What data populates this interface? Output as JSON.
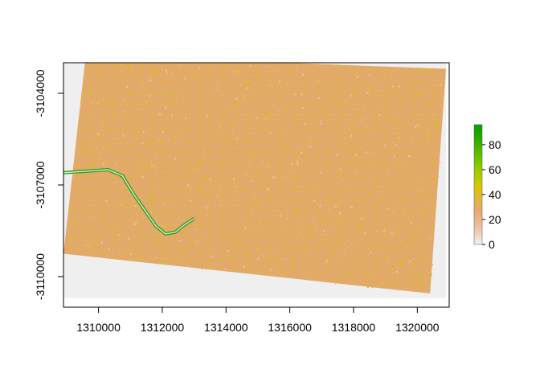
{
  "chart_data": {
    "type": "heatmap",
    "subtype": "raster-map",
    "title": "",
    "xlabel": "",
    "ylabel": "",
    "xlim": [
      1308900,
      1321000
    ],
    "ylim": [
      -3111000,
      -3103000
    ],
    "x_ticks": [
      1310000,
      1312000,
      1314000,
      1316000,
      1318000,
      1320000
    ],
    "x_tick_labels": [
      "1310000",
      "1312000",
      "1314000",
      "1316000",
      "1318000",
      "1320000"
    ],
    "y_ticks": [
      -3104000,
      -3107000,
      -3110000
    ],
    "y_tick_labels": [
      "-3104000",
      "-3107000",
      "-3110000"
    ],
    "raster_extent": {
      "x": [
        1308900,
        1320900
      ],
      "y": [
        -3110700,
        -3102700
      ]
    },
    "raster_corners": [
      [
        1309600,
        -3102750
      ],
      [
        1320900,
        -3103200
      ],
      [
        1320400,
        -3110550
      ],
      [
        1308900,
        -3109250
      ]
    ],
    "river_path": [
      [
        1308900,
        -3106600
      ],
      [
        1309600,
        -3106550
      ],
      [
        1310300,
        -3106500
      ],
      [
        1310750,
        -3106700
      ],
      [
        1311100,
        -3107300
      ],
      [
        1311500,
        -3107900
      ],
      [
        1311800,
        -3108350
      ],
      [
        1312100,
        -3108600
      ],
      [
        1312400,
        -3108550
      ],
      [
        1312700,
        -3108300
      ],
      [
        1313000,
        -3108100
      ]
    ],
    "nodata_color": "#efefef",
    "background_value": 15,
    "legend": {
      "type": "colorbar",
      "min": 0,
      "max": 96,
      "tick_values": [
        0,
        20,
        40,
        60,
        80
      ],
      "tick_labels": [
        "0",
        "20",
        "40",
        "60",
        "80"
      ],
      "colors": [
        "#f2f2f2",
        "#eec1a2",
        "#e8a96c",
        "#e2b53f",
        "#d9c800",
        "#9acc00",
        "#53ba00",
        "#1ea400",
        "#00a600"
      ],
      "placement": "right"
    }
  }
}
